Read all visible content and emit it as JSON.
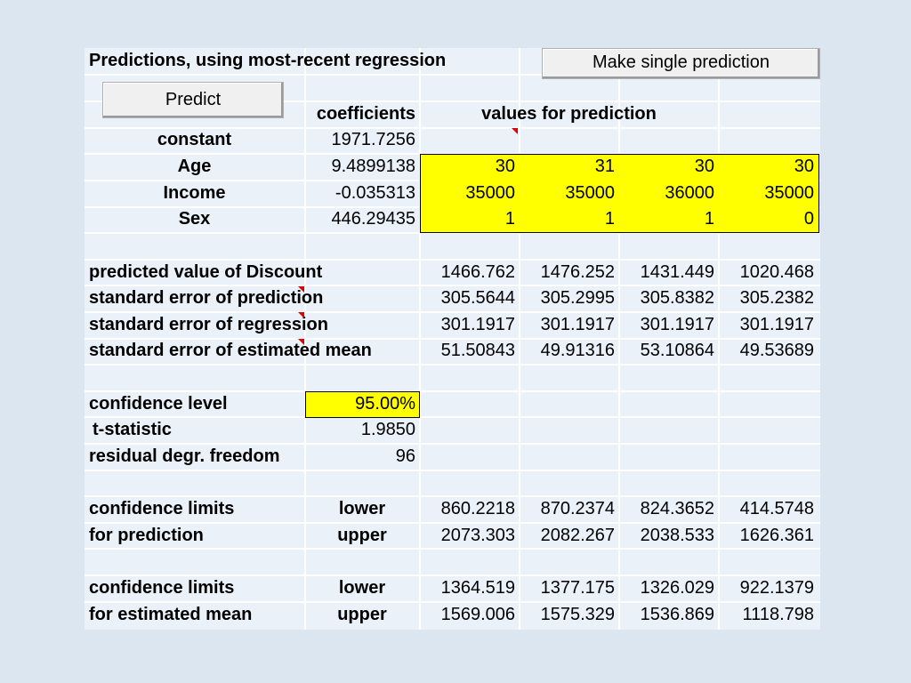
{
  "header": {
    "title": "Predictions, using most-recent regression",
    "single_prediction_button": "Make single prediction",
    "predict_button": "Predict"
  },
  "columns": {
    "coefficients": "coefficients",
    "values_for_prediction": "values for prediction"
  },
  "variables": [
    {
      "name": "constant",
      "coefficient": "1971.7256",
      "values": []
    },
    {
      "name": "Age",
      "coefficient": "9.4899138",
      "values": [
        "30",
        "31",
        "30",
        "30"
      ]
    },
    {
      "name": "Income",
      "coefficient": "-0.035313",
      "values": [
        "35000",
        "35000",
        "36000",
        "35000"
      ]
    },
    {
      "name": "Sex",
      "coefficient": "446.29435",
      "values": [
        "1",
        "1",
        "1",
        "0"
      ]
    }
  ],
  "stats": [
    {
      "label": "predicted value of Discount",
      "values": [
        "1466.762",
        "1476.252",
        "1431.449",
        "1020.468"
      ]
    },
    {
      "label": "standard error of prediction",
      "values": [
        "305.5644",
        "305.2995",
        "305.8382",
        "305.2382"
      ]
    },
    {
      "label": "standard error of regression",
      "values": [
        "301.1917",
        "301.1917",
        "301.1917",
        "301.1917"
      ]
    },
    {
      "label": "standard error of estimated mean",
      "values": [
        "51.50843",
        "49.91316",
        "53.10864",
        "49.53689"
      ]
    }
  ],
  "confidence": {
    "level_label": "confidence level",
    "level_value": "95.00%",
    "t_label": "t-statistic",
    "t_value": "1.9850",
    "df_label": "residual degr. freedom",
    "df_value": "96"
  },
  "limits_prediction": {
    "label_line1": "confidence limits",
    "label_line2": "for prediction",
    "lower_label": "lower",
    "upper_label": "upper",
    "lower": [
      "860.2218",
      "870.2374",
      "824.3652",
      "414.5748"
    ],
    "upper": [
      "2073.303",
      "2082.267",
      "2038.533",
      "1626.361"
    ]
  },
  "limits_mean": {
    "label_line1": "confidence limits",
    "label_line2": "for estimated mean",
    "lower_label": "lower",
    "upper_label": "upper",
    "lower": [
      "1364.519",
      "1377.175",
      "1326.029",
      "922.1379"
    ],
    "upper": [
      "1569.006",
      "1575.329",
      "1536.869",
      "1118.798"
    ]
  },
  "colors": {
    "input_fill": "#ffff00",
    "sheet_bg": "#eaf1f9",
    "page_bg": "#dce6f1",
    "comment_marker": "#e00000"
  }
}
